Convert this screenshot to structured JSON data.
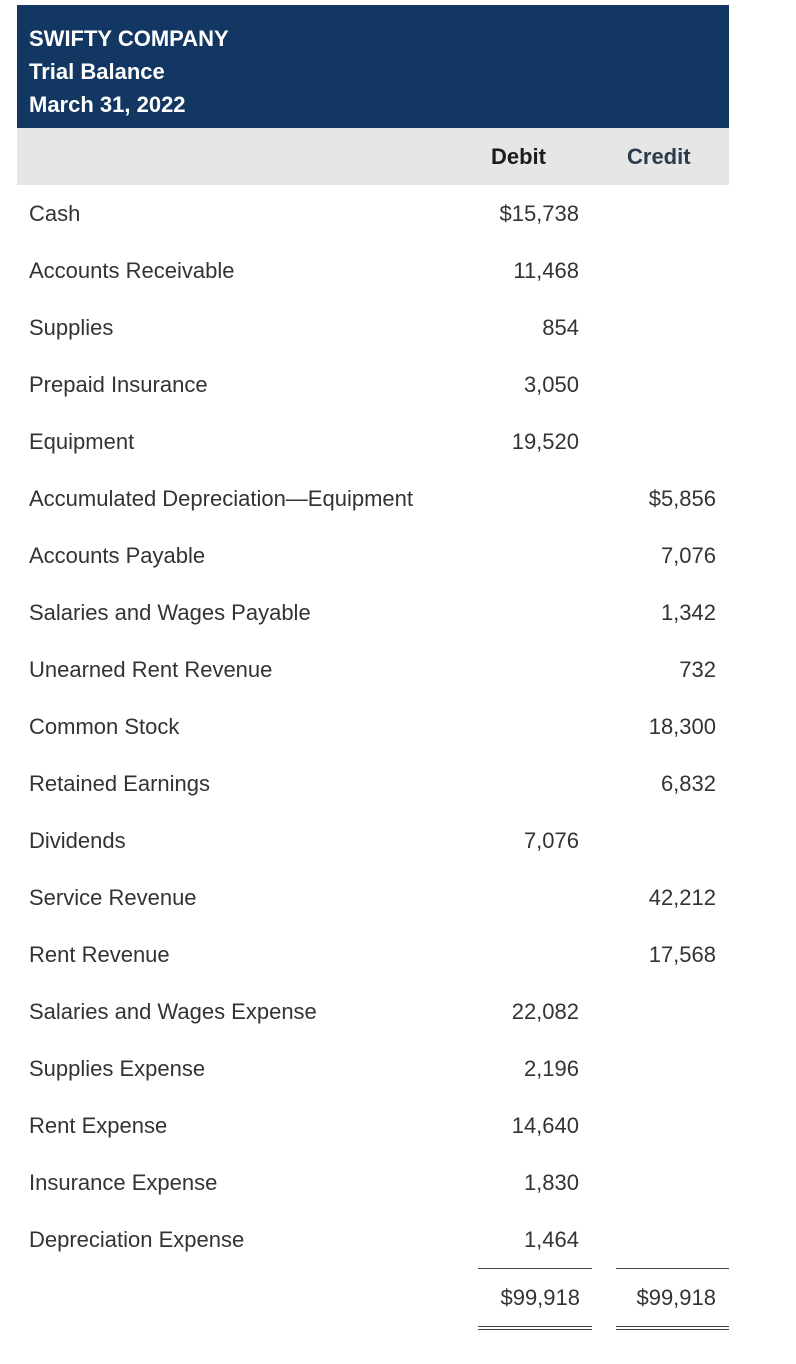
{
  "header": {
    "company": "SWIFTY COMPANY",
    "statement": "Trial Balance",
    "date": "March 31, 2022"
  },
  "columns": {
    "debit": "Debit",
    "credit": "Credit"
  },
  "rows": [
    {
      "account": "Cash",
      "debit": "$15,738",
      "credit": ""
    },
    {
      "account": "Accounts Receivable",
      "debit": "11,468",
      "credit": ""
    },
    {
      "account": "Supplies",
      "debit": "854",
      "credit": ""
    },
    {
      "account": "Prepaid Insurance",
      "debit": "3,050",
      "credit": ""
    },
    {
      "account": "Equipment",
      "debit": "19,520",
      "credit": ""
    },
    {
      "account": "Accumulated Depreciation—Equipment",
      "debit": "",
      "credit": "$5,856"
    },
    {
      "account": "Accounts Payable",
      "debit": "",
      "credit": "7,076"
    },
    {
      "account": "Salaries and Wages Payable",
      "debit": "",
      "credit": "1,342"
    },
    {
      "account": "Unearned Rent Revenue",
      "debit": "",
      "credit": "732"
    },
    {
      "account": "Common Stock",
      "debit": "",
      "credit": "18,300"
    },
    {
      "account": "Retained Earnings",
      "debit": "",
      "credit": "6,832"
    },
    {
      "account": "Dividends",
      "debit": "7,076",
      "credit": ""
    },
    {
      "account": "Service Revenue",
      "debit": "",
      "credit": "42,212"
    },
    {
      "account": "Rent Revenue",
      "debit": "",
      "credit": "17,568"
    },
    {
      "account": "Salaries and Wages Expense",
      "debit": "22,082",
      "credit": ""
    },
    {
      "account": "Supplies Expense",
      "debit": "2,196",
      "credit": ""
    },
    {
      "account": "Rent Expense",
      "debit": "14,640",
      "credit": ""
    },
    {
      "account": "Insurance Expense",
      "debit": "1,830",
      "credit": ""
    },
    {
      "account": "Depreciation Expense",
      "debit": "1,464",
      "credit": ""
    }
  ],
  "totals": {
    "debit": "$99,918",
    "credit": "$99,918"
  },
  "colors": {
    "header_bg": "#133763",
    "column_header_bg": "#e6e6e7"
  }
}
